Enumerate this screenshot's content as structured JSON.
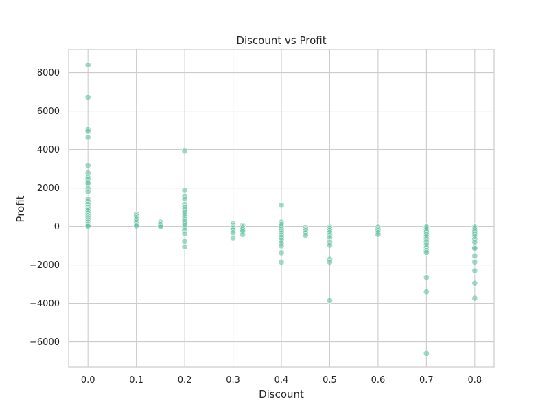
{
  "chart_data": {
    "type": "scatter",
    "title": "Discount vs Profit",
    "xlabel": "Discount",
    "ylabel": "Profit",
    "xlim": [
      -0.04,
      0.84
    ],
    "ylim": [
      -7300,
      9200
    ],
    "xticks": [
      0.0,
      0.1,
      0.2,
      0.3,
      0.4,
      0.5,
      0.6,
      0.7,
      0.8
    ],
    "xtick_labels": [
      "0.0",
      "0.1",
      "0.2",
      "0.3",
      "0.4",
      "0.5",
      "0.6",
      "0.7",
      "0.8"
    ],
    "yticks": [
      -6000,
      -4000,
      -2000,
      0,
      2000,
      4000,
      6000,
      8000
    ],
    "ytick_labels": [
      "−6000",
      "−4000",
      "−2000",
      "0",
      "2000",
      "4000",
      "6000",
      "8000"
    ],
    "grid": true,
    "marker_color": "#66c2a5",
    "points": [
      [
        0.0,
        8400
      ],
      [
        0.0,
        6720
      ],
      [
        0.0,
        5040
      ],
      [
        0.0,
        4950
      ],
      [
        0.0,
        4630
      ],
      [
        0.0,
        3180
      ],
      [
        0.0,
        2790
      ],
      [
        0.0,
        2550
      ],
      [
        0.0,
        2450
      ],
      [
        0.0,
        2300
      ],
      [
        0.0,
        2230
      ],
      [
        0.0,
        1980
      ],
      [
        0.0,
        1800
      ],
      [
        0.0,
        1420
      ],
      [
        0.0,
        1300
      ],
      [
        0.0,
        1150
      ],
      [
        0.0,
        1000
      ],
      [
        0.0,
        900
      ],
      [
        0.0,
        820
      ],
      [
        0.0,
        700
      ],
      [
        0.0,
        560
      ],
      [
        0.0,
        450
      ],
      [
        0.0,
        340
      ],
      [
        0.0,
        230
      ],
      [
        0.0,
        120
      ],
      [
        0.0,
        50
      ],
      [
        0.0,
        10
      ],
      [
        0.1,
        650
      ],
      [
        0.1,
        560
      ],
      [
        0.1,
        460
      ],
      [
        0.1,
        380
      ],
      [
        0.1,
        300
      ],
      [
        0.1,
        220
      ],
      [
        0.1,
        140
      ],
      [
        0.1,
        70
      ],
      [
        0.1,
        20
      ],
      [
        0.15,
        230
      ],
      [
        0.15,
        160
      ],
      [
        0.15,
        100
      ],
      [
        0.15,
        40
      ],
      [
        0.15,
        -20
      ],
      [
        0.2,
        3920
      ],
      [
        0.2,
        1880
      ],
      [
        0.2,
        1580
      ],
      [
        0.2,
        1420
      ],
      [
        0.2,
        1150
      ],
      [
        0.2,
        1000
      ],
      [
        0.2,
        880
      ],
      [
        0.2,
        750
      ],
      [
        0.2,
        620
      ],
      [
        0.2,
        500
      ],
      [
        0.2,
        380
      ],
      [
        0.2,
        260
      ],
      [
        0.2,
        150
      ],
      [
        0.2,
        60
      ],
      [
        0.2,
        -60
      ],
      [
        0.2,
        -200
      ],
      [
        0.2,
        -380
      ],
      [
        0.2,
        -780
      ],
      [
        0.2,
        -1060
      ],
      [
        0.3,
        140
      ],
      [
        0.3,
        60
      ],
      [
        0.3,
        -20
      ],
      [
        0.3,
        -100
      ],
      [
        0.3,
        -200
      ],
      [
        0.3,
        -330
      ],
      [
        0.3,
        -620
      ],
      [
        0.32,
        60
      ],
      [
        0.32,
        -10
      ],
      [
        0.32,
        -80
      ],
      [
        0.32,
        -160
      ],
      [
        0.32,
        -260
      ],
      [
        0.32,
        -420
      ],
      [
        0.4,
        1100
      ],
      [
        0.4,
        230
      ],
      [
        0.4,
        120
      ],
      [
        0.4,
        30
      ],
      [
        0.4,
        -60
      ],
      [
        0.4,
        -150
      ],
      [
        0.4,
        -240
      ],
      [
        0.4,
        -340
      ],
      [
        0.4,
        -450
      ],
      [
        0.4,
        -560
      ],
      [
        0.4,
        -700
      ],
      [
        0.4,
        -870
      ],
      [
        0.4,
        -1010
      ],
      [
        0.4,
        -1370
      ],
      [
        0.4,
        -1850
      ],
      [
        0.45,
        -60
      ],
      [
        0.45,
        -130
      ],
      [
        0.45,
        -220
      ],
      [
        0.45,
        -330
      ],
      [
        0.45,
        -460
      ],
      [
        0.5,
        -20
      ],
      [
        0.5,
        -100
      ],
      [
        0.5,
        -200
      ],
      [
        0.5,
        -310
      ],
      [
        0.5,
        -440
      ],
      [
        0.5,
        -580
      ],
      [
        0.5,
        -820
      ],
      [
        0.5,
        -980
      ],
      [
        0.5,
        -1700
      ],
      [
        0.5,
        -1850
      ],
      [
        0.5,
        -3850
      ],
      [
        0.6,
        -10
      ],
      [
        0.6,
        -60
      ],
      [
        0.6,
        -130
      ],
      [
        0.6,
        -210
      ],
      [
        0.6,
        -320
      ],
      [
        0.6,
        -420
      ],
      [
        0.7,
        -10
      ],
      [
        0.7,
        -80
      ],
      [
        0.7,
        -180
      ],
      [
        0.7,
        -280
      ],
      [
        0.7,
        -400
      ],
      [
        0.7,
        -520
      ],
      [
        0.7,
        -650
      ],
      [
        0.7,
        -800
      ],
      [
        0.7,
        -950
      ],
      [
        0.7,
        -1100
      ],
      [
        0.7,
        -1250
      ],
      [
        0.7,
        -1350
      ],
      [
        0.7,
        -2650
      ],
      [
        0.7,
        -3400
      ],
      [
        0.7,
        -6600
      ],
      [
        0.8,
        -10
      ],
      [
        0.8,
        -80
      ],
      [
        0.8,
        -170
      ],
      [
        0.8,
        -270
      ],
      [
        0.8,
        -380
      ],
      [
        0.8,
        -500
      ],
      [
        0.8,
        -650
      ],
      [
        0.8,
        -820
      ],
      [
        0.8,
        -1100
      ],
      [
        0.8,
        -1150
      ],
      [
        0.8,
        -1530
      ],
      [
        0.8,
        -1850
      ],
      [
        0.8,
        -2300
      ],
      [
        0.8,
        -2950
      ],
      [
        0.8,
        -3730
      ]
    ]
  }
}
